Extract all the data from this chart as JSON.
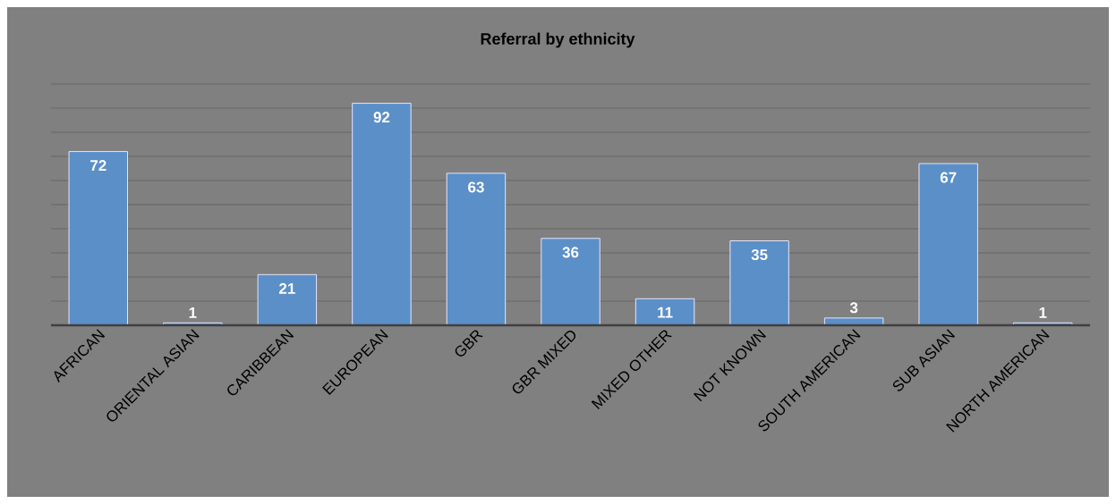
{
  "chart_data": {
    "type": "bar",
    "title": "Referral by ethnicity",
    "categories": [
      "AFRICAN",
      "ORIENTAL ASIAN",
      "CARIBBEAN",
      "EUROPEAN",
      "GBR",
      "GBR MIXED",
      "MIXED OTHER",
      "NOT KNOWN",
      "SOUTH AMERICAN",
      "SUB ASIAN",
      "NORTH AMERICAN"
    ],
    "values": [
      72,
      1,
      21,
      92,
      63,
      36,
      11,
      35,
      3,
      67,
      1
    ],
    "color": "#5b8fc7",
    "ylim": [
      0,
      100
    ],
    "yticks": [
      {
        "value": 10,
        "label": null
      },
      {
        "value": 20,
        "label": null
      },
      {
        "value": 30,
        "label": null
      },
      {
        "value": 40,
        "label": null
      },
      {
        "value": 50,
        "label": null
      },
      {
        "value": 60,
        "label": null
      },
      {
        "value": 70,
        "label": null
      },
      {
        "value": 80,
        "label": null
      },
      {
        "value": 90,
        "label": null
      },
      {
        "value": 100,
        "label": null
      }
    ],
    "grid": "y",
    "tick_labels": "x",
    "data_labels": true
  }
}
